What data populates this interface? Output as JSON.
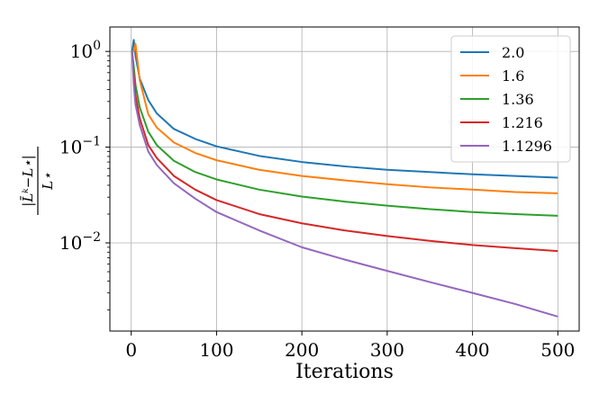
{
  "chart_data": {
    "type": "line",
    "title": "",
    "xlabel": "Iterations",
    "ylabel_numerator": "|L̄ᵏ−L⋆|",
    "ylabel_denominator": "L⋆",
    "yscale": "log",
    "xlim": [
      -25,
      525
    ],
    "ylim": [
      0.0012,
      1.8
    ],
    "grid": true,
    "legend_position": "top-right",
    "x_ticks": [
      0,
      100,
      200,
      300,
      400,
      500
    ],
    "x_tick_labels": [
      "0",
      "100",
      "200",
      "300",
      "400",
      "500"
    ],
    "y_ticks": [
      1,
      0.1,
      0.01
    ],
    "y_tick_labels": [
      {
        "base": "10",
        "exp": "0"
      },
      {
        "base": "10",
        "exp": "−1"
      },
      {
        "base": "10",
        "exp": "−2"
      }
    ],
    "x": [
      1,
      3,
      5,
      10,
      20,
      30,
      50,
      75,
      100,
      150,
      200,
      250,
      300,
      350,
      400,
      450,
      500
    ],
    "series": [
      {
        "name": "2.0",
        "color": "#1f77b4",
        "values": [
          1.0,
          1.32,
          0.9,
          0.52,
          0.31,
          0.225,
          0.155,
          0.122,
          0.102,
          0.081,
          0.07,
          0.063,
          0.058,
          0.055,
          0.052,
          0.05,
          0.048
        ]
      },
      {
        "name": "1.6",
        "color": "#ff7f0e",
        "values": [
          1.0,
          1.0,
          1.2,
          0.5,
          0.22,
          0.16,
          0.112,
          0.087,
          0.073,
          0.058,
          0.05,
          0.045,
          0.041,
          0.038,
          0.036,
          0.034,
          0.033
        ]
      },
      {
        "name": "1.36",
        "color": "#2ca02c",
        "values": [
          1.0,
          0.7,
          0.45,
          0.26,
          0.145,
          0.105,
          0.072,
          0.055,
          0.046,
          0.036,
          0.0305,
          0.027,
          0.0245,
          0.0225,
          0.021,
          0.02,
          0.0192
        ]
      },
      {
        "name": "1.216",
        "color": "#d62728",
        "values": [
          1.0,
          0.55,
          0.35,
          0.2,
          0.105,
          0.077,
          0.05,
          0.036,
          0.028,
          0.02,
          0.016,
          0.0135,
          0.0118,
          0.0105,
          0.0095,
          0.0088,
          0.0082
        ]
      },
      {
        "name": "1.1296",
        "color": "#9467bd",
        "values": [
          1.0,
          0.45,
          0.28,
          0.17,
          0.09,
          0.065,
          0.042,
          0.029,
          0.021,
          0.0135,
          0.009,
          0.0067,
          0.0051,
          0.0039,
          0.003,
          0.0023,
          0.0017
        ]
      }
    ]
  }
}
